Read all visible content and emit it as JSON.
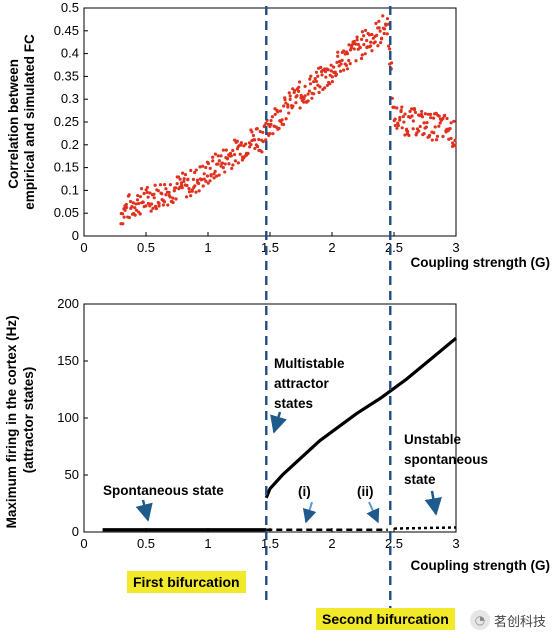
{
  "chart_data": [
    {
      "type": "scatter",
      "xlabel": "Coupling strength (G)",
      "ylabel": [
        "Correlation between",
        "empirical and simulated FC"
      ],
      "xlim": [
        0,
        3
      ],
      "ylim": [
        0,
        0.5
      ],
      "xticks": [
        "0",
        "0.5",
        "1",
        "1.5",
        "2",
        "2.5",
        "3"
      ],
      "yticks": [
        "0",
        "0.05",
        "0.1",
        "0.15",
        "0.2",
        "0.25",
        "0.3",
        "0.35",
        "0.4",
        "0.45",
        "0.5"
      ],
      "marker_color": "#e0301e",
      "series": [
        {
          "x": [
            0.3,
            0.4,
            0.5,
            0.6,
            0.7,
            0.8,
            0.9,
            1.0,
            1.1,
            1.2,
            1.3,
            1.4,
            1.45,
            1.5,
            1.6,
            1.7,
            1.8,
            1.9,
            2.0,
            2.1,
            2.2,
            2.3,
            2.4,
            2.45,
            2.5,
            2.6,
            2.7,
            2.8,
            2.9,
            3.0
          ],
          "y": [
            0.05,
            0.07,
            0.08,
            0.09,
            0.1,
            0.11,
            0.12,
            0.14,
            0.16,
            0.18,
            0.2,
            0.22,
            0.21,
            0.25,
            0.27,
            0.3,
            0.32,
            0.34,
            0.36,
            0.39,
            0.41,
            0.43,
            0.45,
            0.47,
            0.26,
            0.25,
            0.25,
            0.24,
            0.24,
            0.22
          ]
        }
      ]
    },
    {
      "type": "line",
      "xlabel": "Coupling strength (G)",
      "ylabel": [
        "Maximum firing in the cortex (Hz)",
        "(attractor states)"
      ],
      "xlim": [
        0,
        3
      ],
      "ylim": [
        0,
        200
      ],
      "xticks": [
        "0",
        "0.5",
        "1",
        "1.5",
        "2",
        "2.5",
        "3"
      ],
      "yticks": [
        "0",
        "50",
        "100",
        "150",
        "200"
      ],
      "series": [
        {
          "style": "solid",
          "x": [
            0.15,
            1.47
          ],
          "y": [
            2,
            2
          ]
        },
        {
          "style": "solid",
          "x": [
            1.47,
            1.5,
            1.6,
            1.7,
            1.8,
            1.9,
            2.0,
            2.2,
            2.4,
            2.6,
            2.8,
            3.0
          ],
          "y": [
            30,
            38,
            50,
            60,
            70,
            80,
            88,
            104,
            118,
            134,
            152,
            170
          ]
        },
        {
          "style": "dashed",
          "x": [
            1.47,
            2.45
          ],
          "y": [
            2,
            2
          ]
        },
        {
          "style": "dotted",
          "x": [
            2.5,
            3.0
          ],
          "y": [
            3,
            4
          ]
        }
      ],
      "annotations": [
        {
          "lines": [
            "Multistable",
            "attractor",
            "states"
          ]
        },
        {
          "lines": [
            "Unstable",
            "spontaneous",
            "state"
          ]
        },
        {
          "lines": [
            "Spontaneous state"
          ]
        },
        {
          "lines": [
            "(i)"
          ]
        },
        {
          "lines": [
            "(ii)"
          ]
        }
      ],
      "bifurcations": [
        {
          "x": 1.47,
          "label": "First bifurcation"
        },
        {
          "x": 2.47,
          "label": "Second bifurcation"
        }
      ]
    }
  ],
  "watermark": {
    "text": "茗创科技",
    "icon": "wechat-logo-icon"
  }
}
